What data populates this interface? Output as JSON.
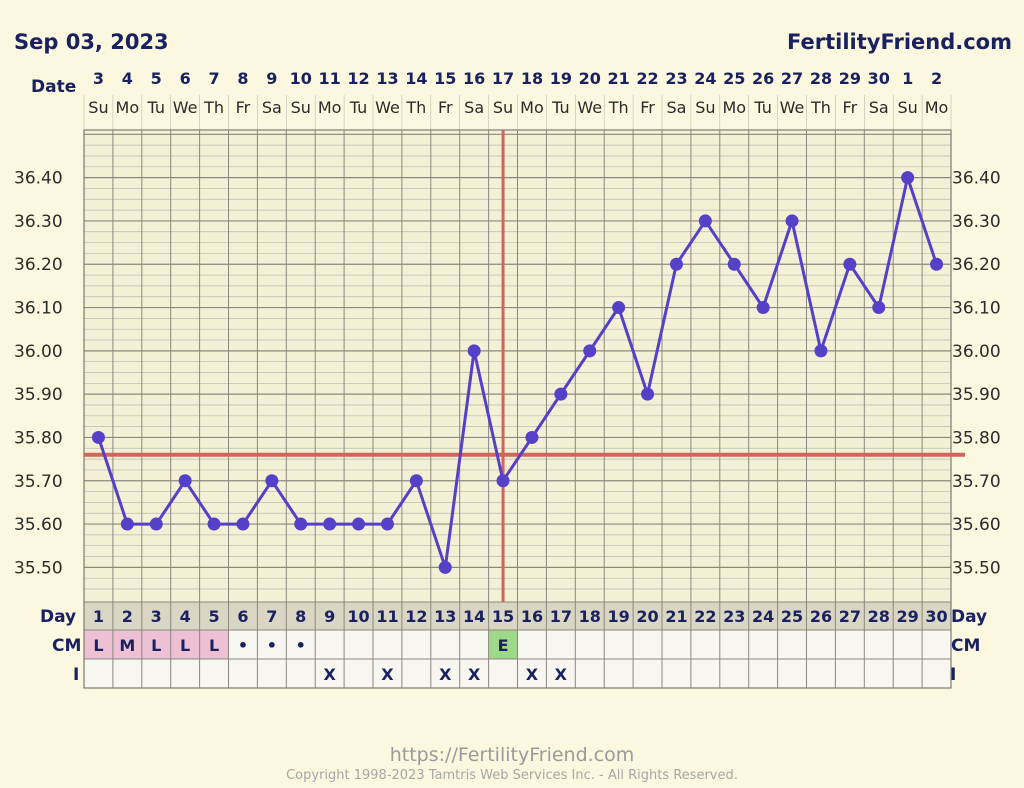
{
  "header": {
    "date_label": "Sep 03, 2023",
    "site_name": "FertilityFriend.com"
  },
  "footer": {
    "url": "https://FertilityFriend.com",
    "copyright": "Copyright 1998-2023 Tamtris Web Services Inc. - All Rights Reserved."
  },
  "chart_data": {
    "type": "line",
    "title": "",
    "date_row_label": "Date",
    "day_row_label": "Day",
    "cm_row_label": "CM",
    "i_row_label": "I",
    "dates": [
      "3",
      "4",
      "5",
      "6",
      "7",
      "8",
      "9",
      "10",
      "11",
      "12",
      "13",
      "14",
      "15",
      "16",
      "17",
      "18",
      "19",
      "20",
      "21",
      "22",
      "23",
      "24",
      "25",
      "26",
      "27",
      "28",
      "29",
      "30",
      "1",
      "2"
    ],
    "weekdays": [
      "Su",
      "Mo",
      "Tu",
      "We",
      "Th",
      "Fr",
      "Sa",
      "Su",
      "Mo",
      "Tu",
      "We",
      "Th",
      "Fr",
      "Sa",
      "Su",
      "Mo",
      "Tu",
      "We",
      "Th",
      "Fr",
      "Sa",
      "Su",
      "Mo",
      "Tu",
      "We",
      "Th",
      "Fr",
      "Sa",
      "Su",
      "Mo"
    ],
    "days": [
      "1",
      "2",
      "3",
      "4",
      "5",
      "6",
      "7",
      "8",
      "9",
      "10",
      "11",
      "12",
      "13",
      "14",
      "15",
      "16",
      "17",
      "18",
      "19",
      "20",
      "21",
      "22",
      "23",
      "24",
      "25",
      "26",
      "27",
      "28",
      "29",
      "30"
    ],
    "temperatures": [
      35.8,
      35.6,
      35.6,
      35.7,
      35.6,
      35.6,
      35.7,
      35.6,
      35.6,
      35.6,
      35.6,
      35.7,
      35.5,
      36.0,
      35.7,
      35.8,
      35.9,
      36.0,
      36.1,
      35.9,
      36.2,
      36.3,
      36.2,
      36.1,
      36.3,
      36.0,
      36.2,
      36.1,
      36.4,
      36.2
    ],
    "ytick_labels": [
      "36.40",
      "36.30",
      "36.20",
      "36.10",
      "36.00",
      "35.90",
      "35.80",
      "35.70",
      "35.60",
      "35.50"
    ],
    "yticks": [
      36.4,
      36.3,
      36.2,
      36.1,
      36.0,
      35.9,
      35.8,
      35.7,
      35.6,
      35.5
    ],
    "ylim": [
      35.42,
      36.51
    ],
    "coverline": 35.76,
    "ovulation_day": 15,
    "cm": [
      "L",
      "M",
      "L",
      "L",
      "L",
      "•",
      "•",
      "•",
      "",
      "",
      "",
      "",
      "",
      "",
      "E",
      "",
      "",
      "",
      "",
      "",
      "",
      "",
      "",
      "",
      "",
      "",
      "",
      "",
      "",
      ""
    ],
    "intercourse": [
      "",
      "",
      "",
      "",
      "",
      "",
      "",
      "",
      "X",
      "",
      "X",
      "",
      "X",
      "X",
      "",
      "X",
      "X",
      "",
      "",
      "",
      "",
      "",
      "",
      "",
      "",
      "",
      "",
      "",
      "",
      ""
    ],
    "colors": {
      "line": "#5540c8",
      "point": "#5540c8",
      "coverline": "#d0655a",
      "menstruation_cell": "#eec0d4",
      "egg_white_cell": "#9ed98a",
      "grid_minor": "#bdbab0",
      "grid_major": "#8a887f",
      "text": "#1a2160"
    }
  }
}
